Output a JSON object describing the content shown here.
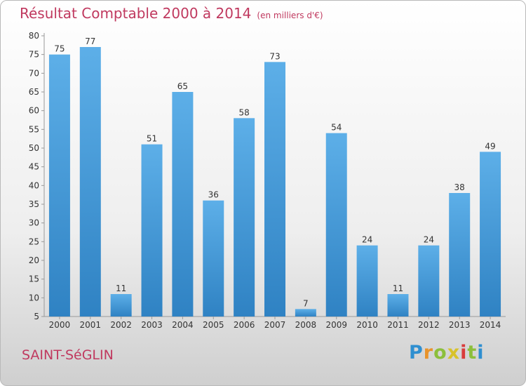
{
  "title": "Résultat Comptable 2000 à 2014",
  "subtitle": "(en milliers d'€)",
  "commune": "SAINT-SéGLIN",
  "logo": {
    "letters": [
      "P",
      "r",
      "o",
      "x",
      "i",
      "t",
      "i"
    ],
    "colors": [
      "#2f8fd0",
      "#e8932a",
      "#8cbf3c",
      "#d8c22a",
      "#d93c3c",
      "#8cbf3c",
      "#2f8fd0"
    ]
  },
  "colors": {
    "title": "#c0395f",
    "bar_light": "#5dafe8",
    "bar_dark": "#2f82c3",
    "axis": "#999999",
    "text": "#333333"
  },
  "chart_data": {
    "type": "bar",
    "title": "Résultat Comptable 2000 à 2014",
    "subtitle": "(en milliers d'€)",
    "xlabel": "",
    "ylabel": "",
    "categories": [
      "2000",
      "2001",
      "2002",
      "2003",
      "2004",
      "2005",
      "2006",
      "2007",
      "2008",
      "2009",
      "2010",
      "2011",
      "2012",
      "2013",
      "2014"
    ],
    "values": [
      75,
      77,
      11,
      51,
      65,
      36,
      58,
      73,
      7,
      54,
      24,
      11,
      24,
      38,
      49
    ],
    "ylim": [
      5,
      80
    ],
    "yticks": [
      5,
      10,
      15,
      20,
      25,
      30,
      35,
      40,
      45,
      50,
      55,
      60,
      65,
      70,
      75,
      80
    ],
    "grid": false,
    "data_labels": true
  }
}
